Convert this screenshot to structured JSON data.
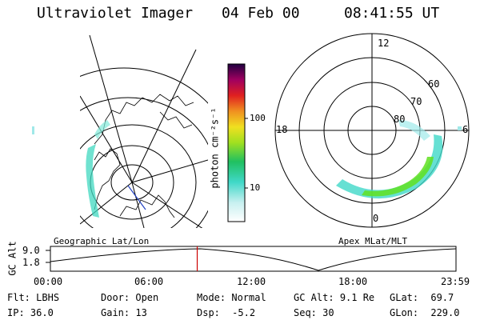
{
  "header": {
    "instrument": "Ultraviolet Imager",
    "date": "04 Feb 00",
    "time": "08:41:55 UT"
  },
  "colorbar": {
    "unit_label": "photon cm⁻²s⁻¹",
    "ticks": [
      "100",
      "10"
    ]
  },
  "polar_plot": {
    "lat_labels": [
      "60",
      "70",
      "80"
    ],
    "mlt_labels": [
      "12",
      "18",
      "6",
      "0"
    ]
  },
  "panel_labels": {
    "left": "Geographic Lat/Lon",
    "right": "Apex MLat/MLT"
  },
  "altitude_plot": {
    "ylabel": "GC Alt",
    "yticks": [
      "9.0",
      "1.8"
    ],
    "xticks": [
      "00:00",
      "06:00",
      "12:00",
      "18:00",
      "23:59"
    ],
    "current_time_fraction": 0.362
  },
  "info": {
    "filter_label": "Flt:",
    "filter_value": "LBHS",
    "ip_label": "IP:",
    "ip_value": "36.0",
    "door_label": "Door:",
    "door_value": "Open",
    "gain_label": "Gain:",
    "gain_value": "13",
    "mode_label": "Mode:",
    "mode_value": "Normal",
    "dsp_label": "Dsp:",
    "dsp_value": "-5.2",
    "gcalt_label": "GC Alt:",
    "gcalt_value": "9.1 Re",
    "seq_label": "Seq:",
    "seq_value": "30",
    "glat_label": "GLat:",
    "glat_value": "69.7",
    "glon_label": "GLon:",
    "glon_value": "229.0"
  },
  "colors": {
    "marker": "#cc0000",
    "aurora_low": "#b0f0f0",
    "aurora_mid": "#40d8c0",
    "aurora_high": "#60e020"
  }
}
